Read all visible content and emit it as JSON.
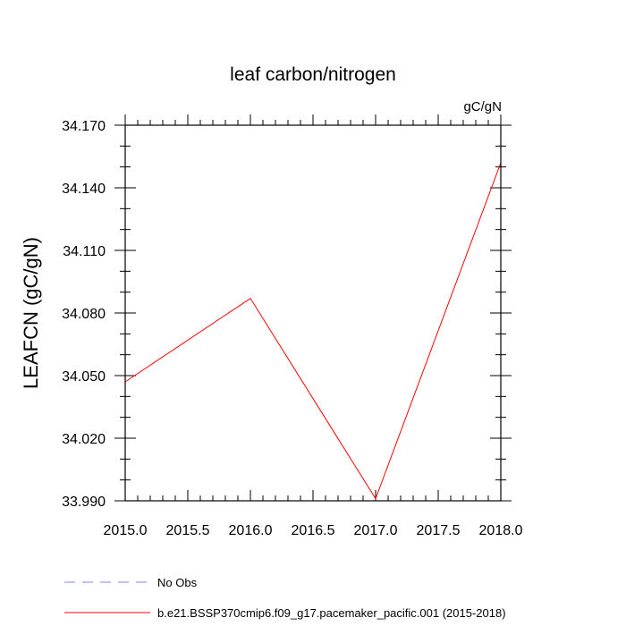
{
  "chart_data": {
    "type": "line",
    "title": "leaf carbon/nitrogen",
    "units": "gC/gN",
    "xlabel": "",
    "ylabel": "LEAFCN  (gC/gN)",
    "xlim": [
      2015.0,
      2018.0
    ],
    "ylim": [
      33.99,
      34.17
    ],
    "x_ticks": [
      2015.0,
      2015.5,
      2016.0,
      2016.5,
      2017.0,
      2017.5,
      2018.0
    ],
    "x_tick_labels": [
      "2015.0",
      "2015.5",
      "2016.0",
      "2016.5",
      "2017.0",
      "2017.5",
      "2018.0"
    ],
    "y_ticks": [
      33.99,
      34.02,
      34.05,
      34.08,
      34.11,
      34.14,
      34.17
    ],
    "y_tick_labels": [
      "33.990",
      "34.020",
      "34.050",
      "34.080",
      "34.110",
      "34.140",
      "34.170"
    ],
    "grid": false,
    "legend_position": "bottom",
    "series": [
      {
        "name": "b.e21.BSSP370cmip6.f09_g17.pacemaker_pacific.001 (2015-2018)",
        "color": "#ff0000",
        "dash": "solid",
        "x": [
          2015.0,
          2016.0,
          2017.0,
          2018.0
        ],
        "values": [
          34.047,
          34.087,
          33.991,
          34.152
        ]
      }
    ],
    "legend": [
      {
        "label": "No Obs",
        "color": "#8080ff",
        "dash": "dashed"
      },
      {
        "label": "b.e21.BSSP370cmip6.f09_g17.pacemaker_pacific.001 (2015-2018)",
        "color": "#ff0000",
        "dash": "solid"
      }
    ]
  }
}
